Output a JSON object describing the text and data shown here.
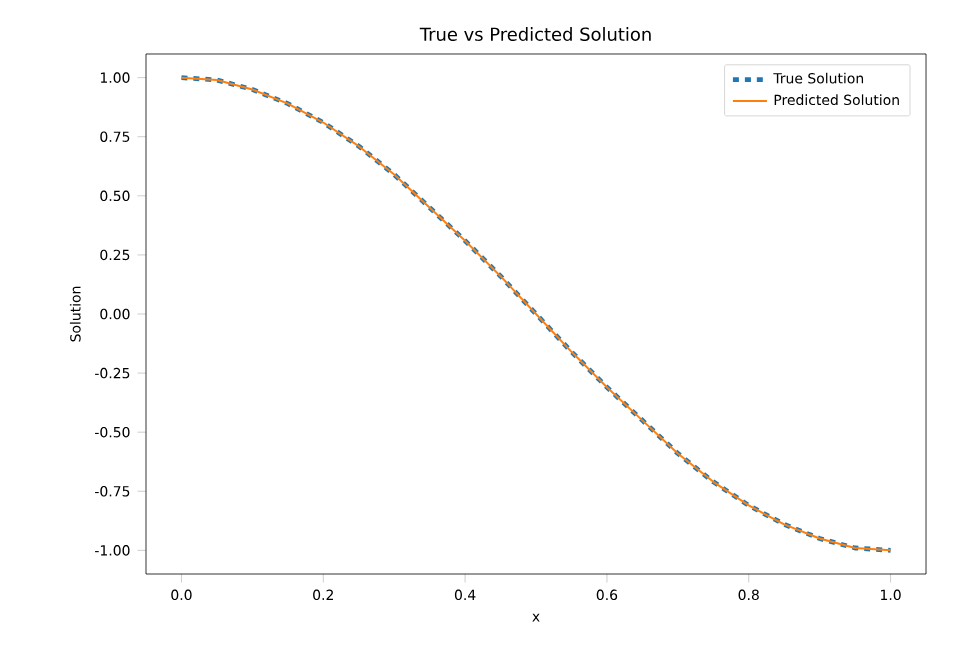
{
  "chart_data": {
    "type": "line",
    "title": "True vs Predicted Solution",
    "xlabel": "x",
    "ylabel": "Solution",
    "x": [
      0,
      0.05,
      0.1,
      0.15,
      0.2,
      0.25,
      0.3,
      0.35,
      0.4,
      0.45,
      0.5,
      0.55,
      0.6,
      0.65,
      0.7,
      0.75,
      0.8,
      0.85,
      0.9,
      0.95,
      1.0
    ],
    "series": [
      {
        "name": "True Solution",
        "color": "#1f77b4",
        "line_style": "dashed",
        "values": [
          1.0,
          0.99,
          0.95,
          0.89,
          0.81,
          0.71,
          0.59,
          0.45,
          0.31,
          0.16,
          0.0,
          -0.16,
          -0.31,
          -0.45,
          -0.59,
          -0.71,
          -0.81,
          -0.89,
          -0.95,
          -0.99,
          -1.0
        ]
      },
      {
        "name": "Predicted Solution",
        "color": "#ff7f0e",
        "line_style": "solid",
        "values": [
          1.0,
          0.99,
          0.95,
          0.89,
          0.81,
          0.71,
          0.59,
          0.45,
          0.31,
          0.16,
          0.0,
          -0.16,
          -0.31,
          -0.45,
          -0.59,
          -0.71,
          -0.81,
          -0.89,
          -0.95,
          -0.99,
          -1.0
        ]
      }
    ],
    "xlim": [
      -0.05,
      1.05
    ],
    "ylim": [
      -1.1,
      1.1
    ],
    "xticks": [
      {
        "value": 0,
        "label": "0.0"
      },
      0.2,
      0.4,
      0.6,
      0.8,
      {
        "value": 1,
        "label": "1.0"
      }
    ],
    "yticks": [
      {
        "value": -1,
        "label": "-1.00"
      },
      {
        "value": -0.75,
        "label": "-0.75"
      },
      {
        "value": -0.5,
        "label": "-0.50"
      },
      {
        "value": -0.25,
        "label": "-0.25"
      },
      {
        "value": 0,
        "label": "0.00"
      },
      {
        "value": 0.25,
        "label": "0.25"
      },
      {
        "value": 0.5,
        "label": "0.50"
      },
      {
        "value": 0.75,
        "label": "0.75"
      },
      {
        "value": 1,
        "label": "1.00"
      }
    ],
    "legend": "top right",
    "grid": false
  }
}
